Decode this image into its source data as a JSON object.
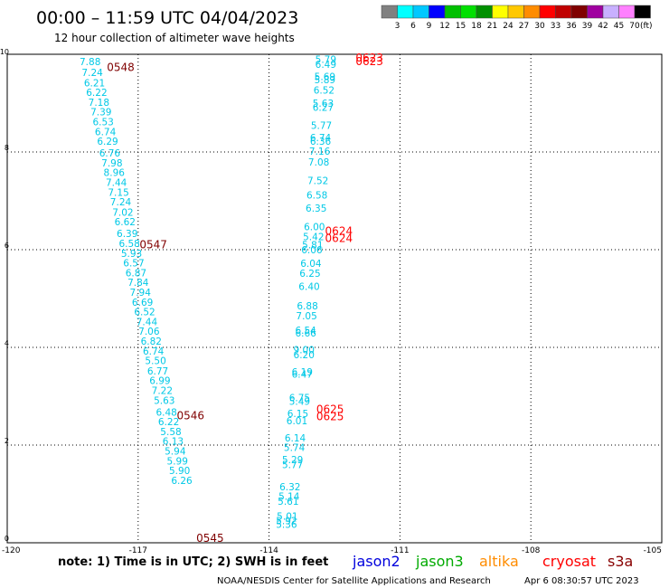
{
  "header": {
    "title": "00:00 – 11:59 UTC 04/04/2023",
    "subtitle": "12 hour collection of altimeter wave heights"
  },
  "legend_scale": {
    "colors": [
      "#808080",
      "#00ffff",
      "#00c8ff",
      "#0000ff",
      "#00c000",
      "#00e000",
      "#009000",
      "#ffff00",
      "#ffc800",
      "#ff8c00",
      "#ff0000",
      "#c00000",
      "#800000",
      "#a000a0",
      "#c8b0ff",
      "#ff80ff",
      "#000000"
    ],
    "labels": [
      "3",
      "6",
      "9",
      "12",
      "15",
      "18",
      "21",
      "24",
      "27",
      "30",
      "33",
      "36",
      "39",
      "42",
      "45",
      "70"
    ],
    "unit": "(ft)"
  },
  "footer": {
    "note": "note: 1) Time is in UTC; 2) SWH is in feet",
    "satellites": [
      {
        "name": "jason2",
        "color": "#0000dd"
      },
      {
        "name": "jason3",
        "color": "#00aa00"
      },
      {
        "name": "altika",
        "color": "#ff8c00"
      },
      {
        "name": "cryosat",
        "color": "#ff0000"
      },
      {
        "name": "s3a",
        "color": "#880000"
      }
    ],
    "credit": "NOAA/NESDIS Center for Satellite Applications and Research",
    "timestamp": "Apr  6 08:30:57 UTC 2023"
  },
  "chart_data": {
    "type": "scatter",
    "xlim": [
      -120,
      -105
    ],
    "ylim": [
      0,
      10
    ],
    "xticks": [
      -120,
      -117,
      -114,
      -111,
      -108,
      -105
    ],
    "xtick_labels": [
      "-120",
      "-117",
      "-114",
      "-111",
      "-108",
      "-105"
    ],
    "yticks": [
      0,
      2,
      4,
      6,
      8,
      10
    ],
    "ytick_labels": [
      "0",
      "2",
      "4",
      "6",
      "8",
      "10"
    ],
    "grid": true,
    "series": [
      {
        "color": "#00c8e6",
        "points": [
          {
            "x": -118.1,
            "y": 9.85,
            "label": "7.88"
          },
          {
            "x": -118.05,
            "y": 9.63,
            "label": "7.24"
          },
          {
            "x": -118.0,
            "y": 9.42,
            "label": "6.21"
          },
          {
            "x": -117.95,
            "y": 9.22,
            "label": "6.22"
          },
          {
            "x": -117.9,
            "y": 9.02,
            "label": "7.18"
          },
          {
            "x": -117.85,
            "y": 8.82,
            "label": "7.39"
          },
          {
            "x": -117.8,
            "y": 8.62,
            "label": "6.53"
          },
          {
            "x": -117.75,
            "y": 8.42,
            "label": "6.74"
          },
          {
            "x": -117.7,
            "y": 8.22,
            "label": "6.29"
          },
          {
            "x": -117.65,
            "y": 7.98,
            "label": "6.76"
          },
          {
            "x": -117.6,
            "y": 7.78,
            "label": "7.98"
          },
          {
            "x": -117.55,
            "y": 7.58,
            "label": "8.96"
          },
          {
            "x": -117.5,
            "y": 7.38,
            "label": "7.44"
          },
          {
            "x": -117.45,
            "y": 7.18,
            "label": "7.15"
          },
          {
            "x": -117.4,
            "y": 6.98,
            "label": "7.24"
          },
          {
            "x": -117.35,
            "y": 6.77,
            "label": "7.02"
          },
          {
            "x": -117.3,
            "y": 6.57,
            "label": "6.62"
          },
          {
            "x": -117.25,
            "y": 6.33,
            "label": "6.39"
          },
          {
            "x": -117.2,
            "y": 6.13,
            "label": "6.58"
          },
          {
            "x": -117.15,
            "y": 5.93,
            "label": "5.93"
          },
          {
            "x": -117.1,
            "y": 5.73,
            "label": "6.57"
          },
          {
            "x": -117.05,
            "y": 5.53,
            "label": "6.87"
          },
          {
            "x": -117.0,
            "y": 5.33,
            "label": "7.84"
          },
          {
            "x": -116.95,
            "y": 5.13,
            "label": "7.94"
          },
          {
            "x": -116.9,
            "y": 4.93,
            "label": "6.69"
          },
          {
            "x": -116.85,
            "y": 4.73,
            "label": "6.52"
          },
          {
            "x": -116.8,
            "y": 4.53,
            "label": "7.44"
          },
          {
            "x": -116.75,
            "y": 4.33,
            "label": "7.06"
          },
          {
            "x": -116.7,
            "y": 4.13,
            "label": "6.82"
          },
          {
            "x": -116.65,
            "y": 3.93,
            "label": "6.74"
          },
          {
            "x": -116.6,
            "y": 3.73,
            "label": "5.50"
          },
          {
            "x": -116.55,
            "y": 3.52,
            "label": "6.77"
          },
          {
            "x": -116.5,
            "y": 3.32,
            "label": "6.99"
          },
          {
            "x": -116.45,
            "y": 3.12,
            "label": "7.22"
          },
          {
            "x": -116.4,
            "y": 2.92,
            "label": "5.63"
          },
          {
            "x": -116.35,
            "y": 2.68,
            "label": "6.48"
          },
          {
            "x": -116.3,
            "y": 2.48,
            "label": "6.22"
          },
          {
            "x": -116.25,
            "y": 2.28,
            "label": "5.58"
          },
          {
            "x": -116.2,
            "y": 2.08,
            "label": "6.13"
          },
          {
            "x": -116.15,
            "y": 1.88,
            "label": "5.94"
          },
          {
            "x": -116.1,
            "y": 1.68,
            "label": "5.99"
          },
          {
            "x": -116.05,
            "y": 1.48,
            "label": "5.90"
          },
          {
            "x": -116.0,
            "y": 1.28,
            "label": "6.26"
          }
        ]
      },
      {
        "color": "#00c8e6",
        "points": [
          {
            "x": -112.7,
            "y": 9.9,
            "label": "5.79"
          },
          {
            "x": -112.7,
            "y": 9.8,
            "label": "6.49"
          },
          {
            "x": -112.72,
            "y": 9.55,
            "label": "5.69"
          },
          {
            "x": -112.72,
            "y": 9.48,
            "label": "5.89"
          },
          {
            "x": -112.74,
            "y": 9.27,
            "label": "6.52"
          },
          {
            "x": -112.76,
            "y": 9.0,
            "label": "5.63"
          },
          {
            "x": -112.76,
            "y": 8.92,
            "label": "6.27"
          },
          {
            "x": -112.8,
            "y": 8.55,
            "label": "5.77"
          },
          {
            "x": -112.82,
            "y": 8.3,
            "label": "6.74"
          },
          {
            "x": -112.82,
            "y": 8.22,
            "label": "6.36"
          },
          {
            "x": -112.84,
            "y": 8.02,
            "label": "7.16"
          },
          {
            "x": -112.86,
            "y": 7.8,
            "label": "7.08"
          },
          {
            "x": -112.88,
            "y": 7.42,
            "label": "7.52"
          },
          {
            "x": -112.9,
            "y": 7.12,
            "label": "6.58"
          },
          {
            "x": -112.92,
            "y": 6.85,
            "label": "6.35"
          },
          {
            "x": -112.96,
            "y": 6.47,
            "label": "6.00"
          },
          {
            "x": -112.98,
            "y": 6.27,
            "label": "5.42"
          },
          {
            "x": -113.0,
            "y": 6.1,
            "label": "5.81"
          },
          {
            "x": -113.02,
            "y": 6.0,
            "label": "6.06"
          },
          {
            "x": -113.04,
            "y": 5.72,
            "label": "6.04"
          },
          {
            "x": -113.06,
            "y": 5.52,
            "label": "6.25"
          },
          {
            "x": -113.08,
            "y": 5.25,
            "label": "6.40"
          },
          {
            "x": -113.12,
            "y": 4.85,
            "label": "6.88"
          },
          {
            "x": -113.14,
            "y": 4.65,
            "label": "7.05"
          },
          {
            "x": -113.16,
            "y": 4.35,
            "label": "6.54"
          },
          {
            "x": -113.16,
            "y": 4.3,
            "label": "6.66"
          },
          {
            "x": -113.2,
            "y": 3.95,
            "label": "9.00"
          },
          {
            "x": -113.2,
            "y": 3.85,
            "label": "6.20"
          },
          {
            "x": -113.24,
            "y": 3.5,
            "label": "6.19"
          },
          {
            "x": -113.24,
            "y": 3.45,
            "label": "6.47"
          },
          {
            "x": -113.3,
            "y": 2.97,
            "label": "6.75"
          },
          {
            "x": -113.3,
            "y": 2.9,
            "label": "5.49"
          },
          {
            "x": -113.34,
            "y": 2.65,
            "label": "6.15"
          },
          {
            "x": -113.36,
            "y": 2.5,
            "label": "6.01"
          },
          {
            "x": -113.4,
            "y": 2.15,
            "label": "6.14"
          },
          {
            "x": -113.42,
            "y": 1.95,
            "label": "5.74"
          },
          {
            "x": -113.46,
            "y": 1.7,
            "label": "5.29"
          },
          {
            "x": -113.46,
            "y": 1.6,
            "label": "5.77"
          },
          {
            "x": -113.52,
            "y": 1.15,
            "label": "6.32"
          },
          {
            "x": -113.54,
            "y": 0.95,
            "label": "5.14"
          },
          {
            "x": -113.56,
            "y": 0.85,
            "label": "5.61"
          },
          {
            "x": -113.58,
            "y": 0.55,
            "label": "5.01"
          },
          {
            "x": -113.6,
            "y": 0.45,
            "label": "5.92"
          },
          {
            "x": -113.6,
            "y": 0.38,
            "label": "5.36"
          }
        ]
      }
    ],
    "annotations": [
      {
        "text": "0548",
        "x": -117.4,
        "y": 9.75,
        "color": "#800000"
      },
      {
        "text": "0547",
        "x": -116.65,
        "y": 6.12,
        "color": "#800000"
      },
      {
        "text": "0546",
        "x": -115.8,
        "y": 2.62,
        "color": "#800000"
      },
      {
        "text": "0545",
        "x": -115.35,
        "y": 0.02,
        "color": "#800000"
      },
      {
        "text": "0623",
        "x": -111.7,
        "y": 9.97,
        "color": "#ff0000"
      },
      {
        "text": "0623",
        "x": -111.7,
        "y": 9.87,
        "color": "#ff0000"
      },
      {
        "text": "0624",
        "x": -112.4,
        "y": 6.4,
        "color": "#ff0000"
      },
      {
        "text": "0624",
        "x": -112.4,
        "y": 6.25,
        "color": "#ff0000"
      },
      {
        "text": "0625",
        "x": -112.6,
        "y": 2.75,
        "color": "#ff0000"
      },
      {
        "text": "0625",
        "x": -112.6,
        "y": 2.6,
        "color": "#ff0000"
      }
    ]
  }
}
